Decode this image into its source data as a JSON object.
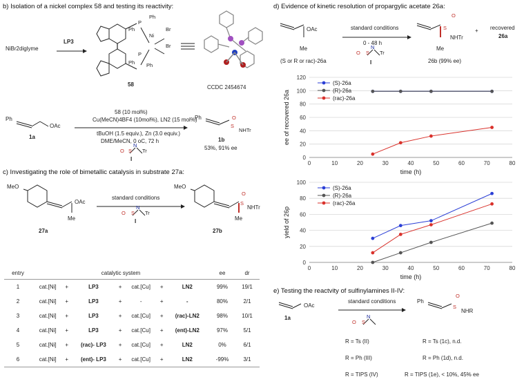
{
  "sections": {
    "b": "b) Isolation of a nickel complex 58 and testing its reactivity:",
    "c": "c) Investigating the role of bimetallic catalysis in substrate 27a:",
    "d": "d) Evidence of kinetic resolution of propargylic acetate 26a:",
    "e": "e) Testing the reactvity of sulfinylamines II-IV:"
  },
  "b": {
    "reagent": "NiBr2diglyme",
    "arrow_label": "LP3",
    "complex_label": "58",
    "ph_labels": [
      "Ph",
      "Ph",
      "Ph",
      "Ph"
    ],
    "atoms": {
      "P": "P",
      "Ni": "Ni",
      "Br": "Br"
    },
    "ccdc": "CCDC 2454674",
    "conditions": [
      "58 (10 mol%)",
      "Cu(MeCN)4BF4 (10mol%), LN2 (15 mol%)",
      "tBuOH (1.5 equiv.), Zn (3.0 equiv.)",
      "DME/MeCN, 0 oC, 72 h"
    ],
    "substrate": "1a",
    "product": "1b",
    "product_result": "53%, 91% ee",
    "sulfinylamine_label": "I",
    "ph": "Ph",
    "oac": "OAc",
    "nhtr": "NHTr",
    "s_label": "S",
    "o_label": "O",
    "n_label": "N",
    "tr_label": "Tr"
  },
  "c": {
    "arrow_top": "standard conditions",
    "reagent_label": "I",
    "meo": "MeO",
    "oac": "OAc",
    "me": "Me",
    "substrate": "27a",
    "product": "27b",
    "nhtr": "NHTr"
  },
  "table": {
    "headers": [
      "entry",
      "catalytic system",
      "ee",
      "dr"
    ],
    "rows": [
      [
        "1",
        "cat.[Ni]",
        "+",
        "LP3",
        "+",
        "cat.[Cu]",
        "+",
        "LN2",
        "99%",
        "19/1"
      ],
      [
        "2",
        "cat.[Ni]",
        "+",
        "LP3",
        "+",
        "-",
        "+",
        "-",
        "80%",
        "2/1"
      ],
      [
        "3",
        "cat.[Ni]",
        "+",
        "LP3",
        "+",
        "cat.[Cu]",
        "+",
        "(rac)-LN2",
        "98%",
        "10/1"
      ],
      [
        "4",
        "cat.[Ni]",
        "+",
        "LP3",
        "+",
        "cat.[Cu]",
        "+",
        "(ent)-LN2",
        "97%",
        "5/1"
      ],
      [
        "5",
        "cat.[Ni]",
        "+",
        "(rac)- LP3",
        "+",
        "cat.[Cu]",
        "+",
        "LN2",
        "0%",
        "6/1"
      ],
      [
        "6",
        "cat.[Ni]",
        "+",
        "(ent)- LP3",
        "+",
        "cat.[Cu]",
        "+",
        "LN2",
        "-99%",
        "3/1"
      ]
    ]
  },
  "d": {
    "arrow_top": "standard conditions",
    "arrow_bottom": "0 - 48 h",
    "reagent_label": "I",
    "substrate_label": "(S or R or rac)-26a",
    "product_label": "26b (99% ee)",
    "plus": "+",
    "recovered": "recovered",
    "recovered_id": "26a",
    "oac": "OAc",
    "me": "Me",
    "nhtr": "NHTr"
  },
  "e": {
    "arrow_top": "standard conditions",
    "substrate": "1a",
    "oac": "OAc",
    "ph": "Ph",
    "nhr": "NHR",
    "rows": [
      {
        "left": "R = Ts (II)",
        "right": "R = Ts (1c), n.d."
      },
      {
        "left": "R = Ph (III)",
        "right": "R = Ph (1d), n.d."
      },
      {
        "left": "R = TIPS (IV)",
        "right": "R = TIPS (1e), < 10%, 45% ee"
      }
    ]
  },
  "chart_data": [
    {
      "type": "line",
      "ylabel": "ee of recovered 26a",
      "xlabel": "time (h)",
      "xlim": [
        0,
        80
      ],
      "ylim": [
        0,
        120
      ],
      "xticks": [
        0,
        10,
        20,
        30,
        40,
        50,
        60,
        70,
        80
      ],
      "yticks": [
        0,
        20,
        40,
        60,
        80,
        100,
        120
      ],
      "grid": "horizontal",
      "legend": "top-left",
      "series": [
        {
          "name": "(S)-26a",
          "color": "#2b3fd6",
          "x": [
            25,
            36,
            48,
            72
          ],
          "y": [
            99,
            99,
            99,
            99
          ]
        },
        {
          "name": "(R)-26a",
          "color": "#555555",
          "x": [
            25,
            36,
            48,
            72
          ],
          "y": [
            99,
            99,
            99,
            99
          ]
        },
        {
          "name": "(rac)-26a",
          "color": "#d9312b",
          "x": [
            25,
            36,
            48,
            72
          ],
          "y": [
            5,
            22,
            32,
            45
          ]
        }
      ]
    },
    {
      "type": "line",
      "ylabel": "yield of 26p",
      "xlabel": "time (h)",
      "xlim": [
        0,
        80
      ],
      "ylim": [
        0,
        100
      ],
      "xticks": [
        0,
        10,
        20,
        30,
        40,
        50,
        60,
        70,
        80
      ],
      "yticks": [
        0,
        20,
        40,
        60,
        80,
        100
      ],
      "grid": "horizontal",
      "legend": "top-left",
      "series": [
        {
          "name": "(S)-26a",
          "color": "#2b3fd6",
          "x": [
            25,
            36,
            48,
            72
          ],
          "y": [
            30,
            46,
            52,
            86
          ]
        },
        {
          "name": "(R)-26a",
          "color": "#555555",
          "x": [
            25,
            36,
            48,
            72
          ],
          "y": [
            0,
            12,
            25,
            49
          ]
        },
        {
          "name": "(rac)-26a",
          "color": "#d9312b",
          "x": [
            25,
            36,
            48,
            72
          ],
          "y": [
            12,
            35,
            47,
            73
          ]
        }
      ]
    }
  ]
}
